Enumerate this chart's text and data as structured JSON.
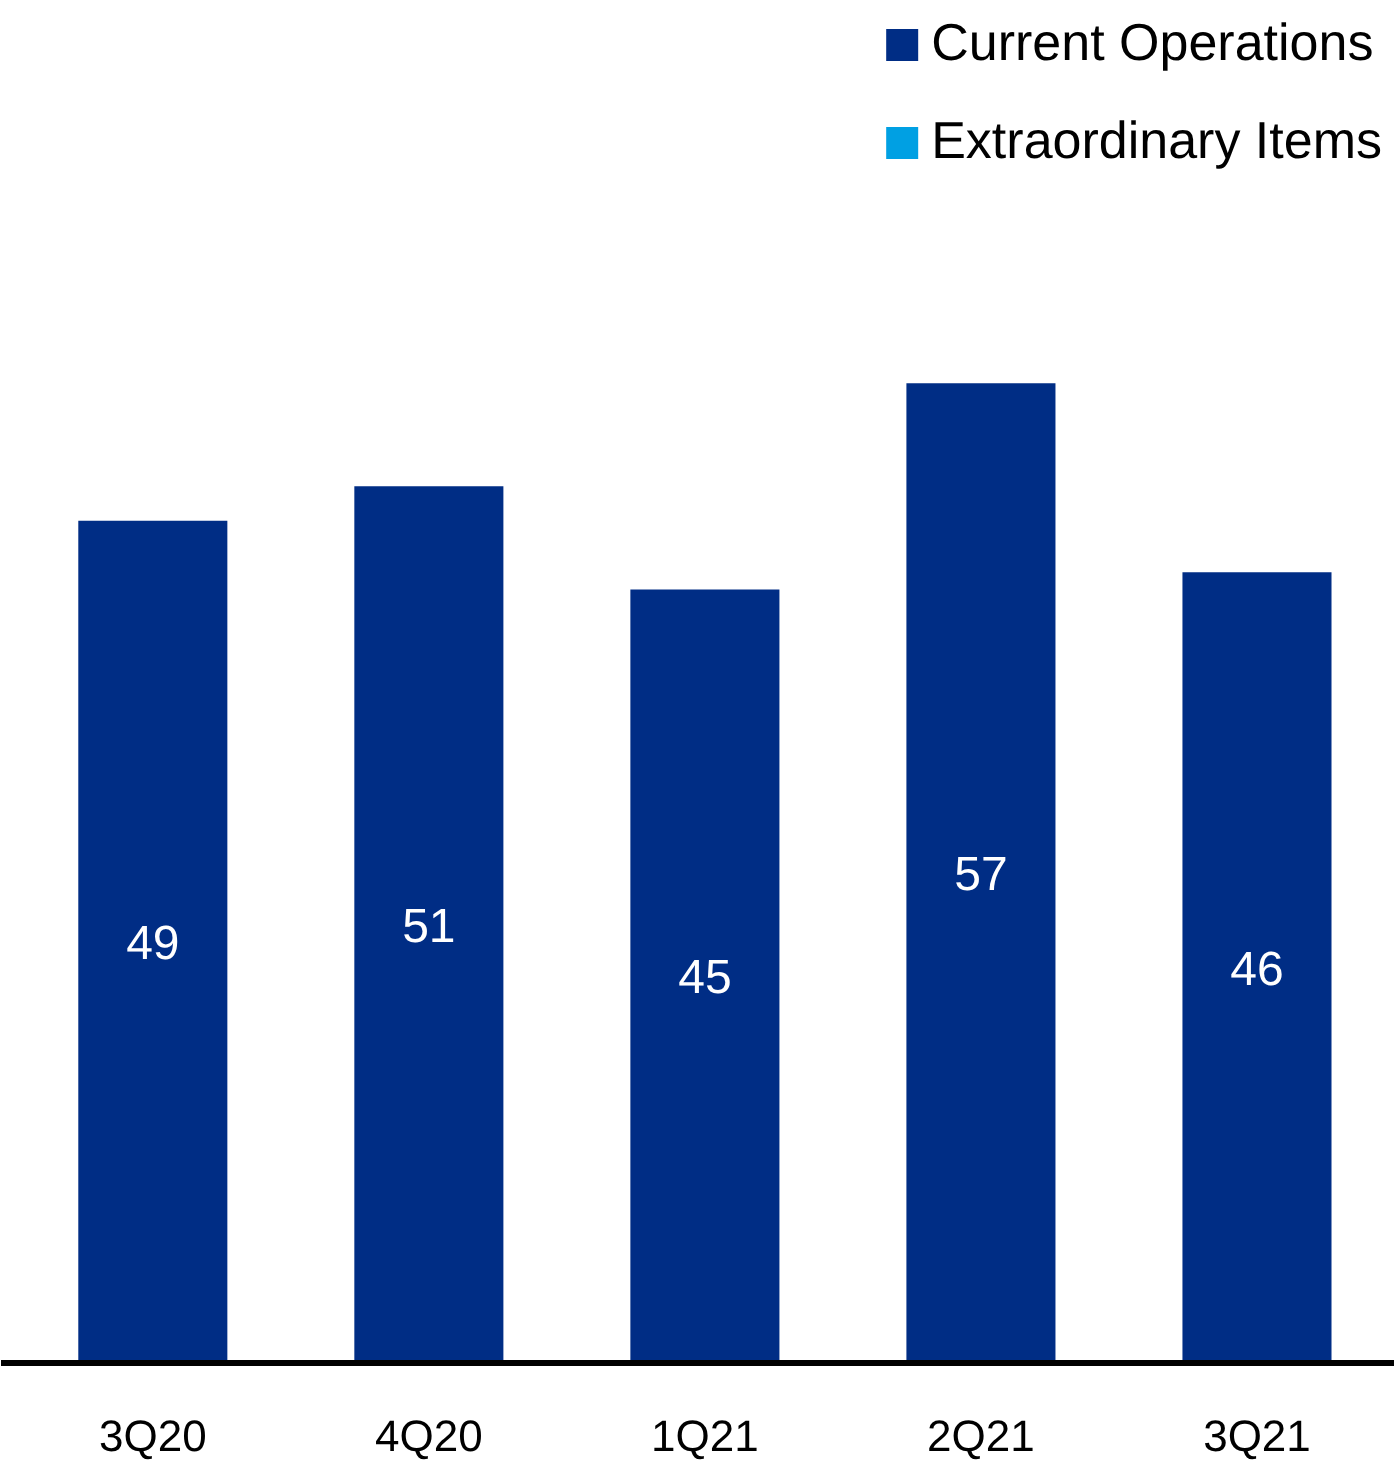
{
  "chart_data": {
    "type": "bar",
    "categories": [
      "3Q20",
      "4Q20",
      "1Q21",
      "2Q21",
      "3Q21"
    ],
    "series": [
      {
        "name": "Current Operations",
        "color": "#002d85",
        "values": [
          49,
          51,
          45,
          57,
          46
        ]
      },
      {
        "name": "Extraordinary Items",
        "color": "#00a0e3",
        "values": [
          null,
          null,
          null,
          null,
          null
        ]
      }
    ],
    "data_labels": true,
    "legend": "top right",
    "grid": false
  }
}
